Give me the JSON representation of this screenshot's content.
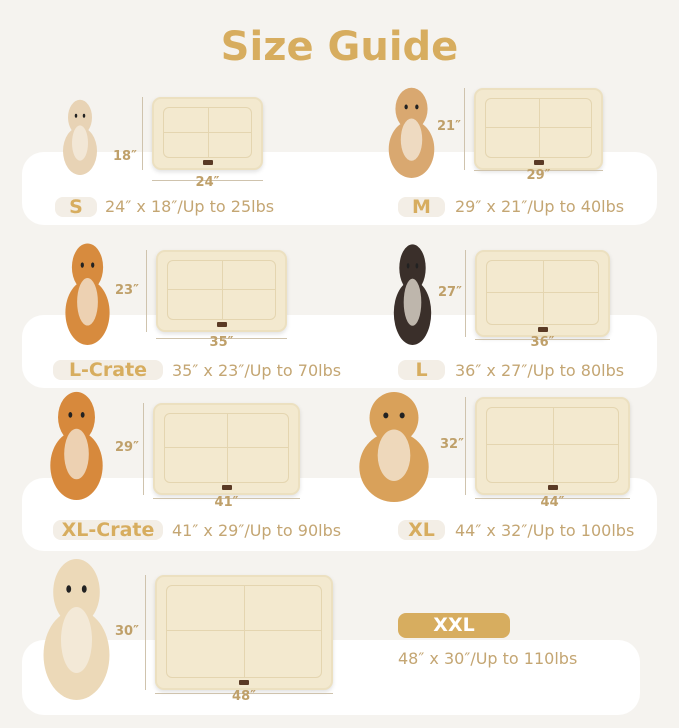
{
  "title": "Size Guide",
  "colors": {
    "accent": "#d7ad5f",
    "background": "#f5f3ef",
    "mat": "#f3e9cf"
  },
  "sizes": [
    {
      "label": "S",
      "width": "24″",
      "height": "18″",
      "spec": "24″ x 18″/Up to 25lbs"
    },
    {
      "label": "M",
      "width": "29″",
      "height": "21″",
      "spec": "29″ x 21″/Up to 40lbs"
    },
    {
      "label": "L-Crate",
      "width": "35″",
      "height": "23″",
      "spec": "35″ x 23″/Up to 70lbs"
    },
    {
      "label": "L",
      "width": "36″",
      "height": "27″",
      "spec": "36″ x 27″/Up to 80lbs"
    },
    {
      "label": "XL-Crate",
      "width": "41″",
      "height": "29″",
      "spec": "41″ x 29″/Up to 90lbs"
    },
    {
      "label": "XL",
      "width": "44″",
      "height": "32″",
      "spec": "44″ x 32″/Up to 100lbs"
    },
    {
      "label": "XXL",
      "width": "48″",
      "height": "30″",
      "spec": "48″ x 30″/Up to 110lbs"
    }
  ]
}
